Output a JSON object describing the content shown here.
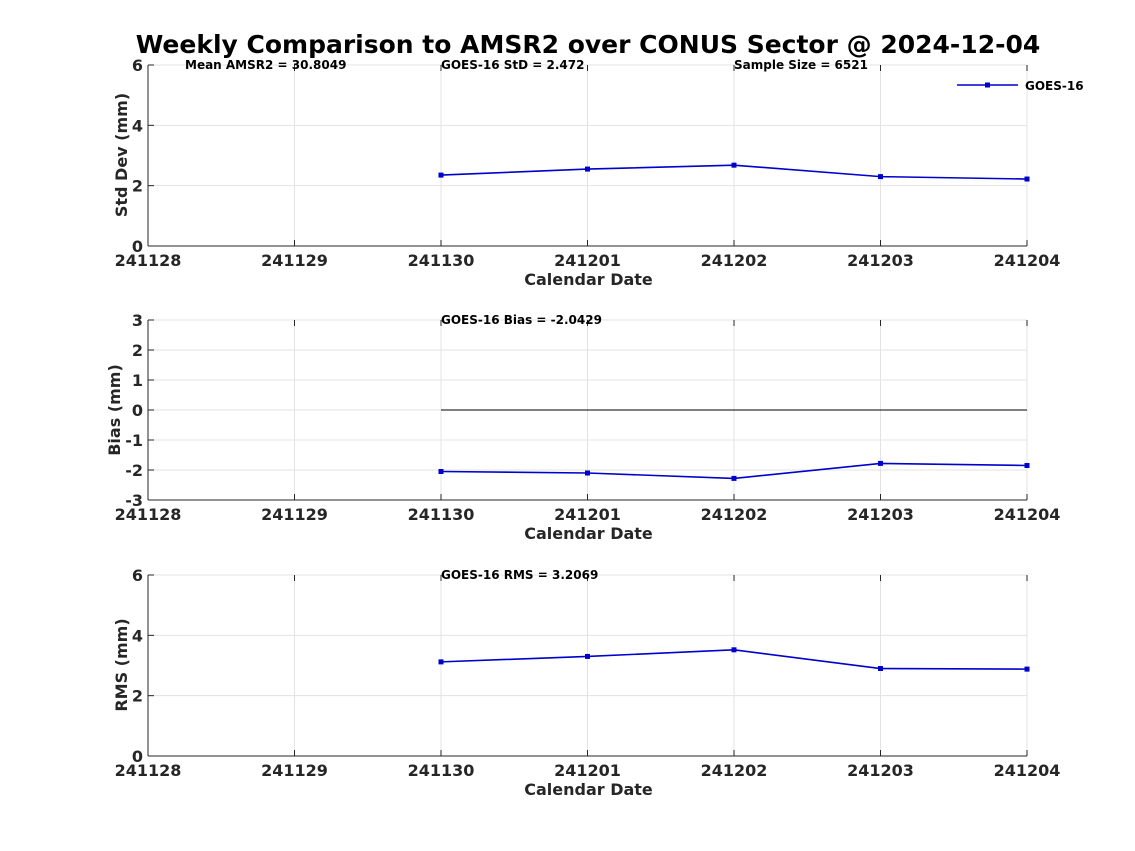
{
  "title": "Weekly Comparison to AMSR2 over CONUS Sector @ 2024-12-04",
  "colors": {
    "series": "#0000cc",
    "grid": "#e3e3e3",
    "axis": "#262626",
    "zero_line": "#000000"
  },
  "chart_data": [
    {
      "type": "line",
      "title": "Weekly Comparison to AMSR2 over CONUS Sector @ 2024-12-04",
      "xlabel": "Calendar Date",
      "ylabel": "Std Dev (mm)",
      "categories": [
        "241128",
        "241129",
        "241130",
        "241201",
        "241202",
        "241203",
        "241204"
      ],
      "ylim": [
        0,
        6
      ],
      "yticks": [
        "0",
        "2",
        "4",
        "6"
      ],
      "grid": true,
      "legend": {
        "position": "top-right",
        "entries": [
          "GOES-16"
        ]
      },
      "annotations": [
        "Mean AMSR2 = 30.8049",
        "GOES-16 StD = 2.472",
        "Sample Size = 6521"
      ],
      "series": [
        {
          "name": "GOES-16",
          "x": [
            "241130",
            "241201",
            "241202",
            "241203",
            "241204"
          ],
          "values": [
            2.35,
            2.55,
            2.68,
            2.3,
            2.22
          ]
        }
      ]
    },
    {
      "type": "line",
      "xlabel": "Calendar Date",
      "ylabel": "Bias (mm)",
      "categories": [
        "241128",
        "241129",
        "241130",
        "241201",
        "241202",
        "241203",
        "241204"
      ],
      "ylim": [
        -3,
        3
      ],
      "yticks": [
        "-3",
        "-2",
        "-1",
        "0",
        "1",
        "2",
        "3"
      ],
      "grid": true,
      "zero_line": {
        "from": "241130",
        "to": "241204",
        "value": 0
      },
      "annotations": [
        "GOES-16 Bias  = -2.0429"
      ],
      "series": [
        {
          "name": "GOES-16",
          "x": [
            "241130",
            "241201",
            "241202",
            "241203",
            "241204"
          ],
          "values": [
            -2.05,
            -2.1,
            -2.28,
            -1.78,
            -1.85
          ]
        }
      ]
    },
    {
      "type": "line",
      "xlabel": "Calendar Date",
      "ylabel": "RMS (mm)",
      "categories": [
        "241128",
        "241129",
        "241130",
        "241201",
        "241202",
        "241203",
        "241204"
      ],
      "ylim": [
        0,
        6
      ],
      "yticks": [
        "0",
        "2",
        "4",
        "6"
      ],
      "grid": true,
      "annotations": [
        "GOES-16 RMS = 3.2069"
      ],
      "series": [
        {
          "name": "GOES-16",
          "x": [
            "241130",
            "241201",
            "241202",
            "241203",
            "241204"
          ],
          "values": [
            3.12,
            3.3,
            3.52,
            2.9,
            2.88
          ]
        }
      ]
    }
  ]
}
